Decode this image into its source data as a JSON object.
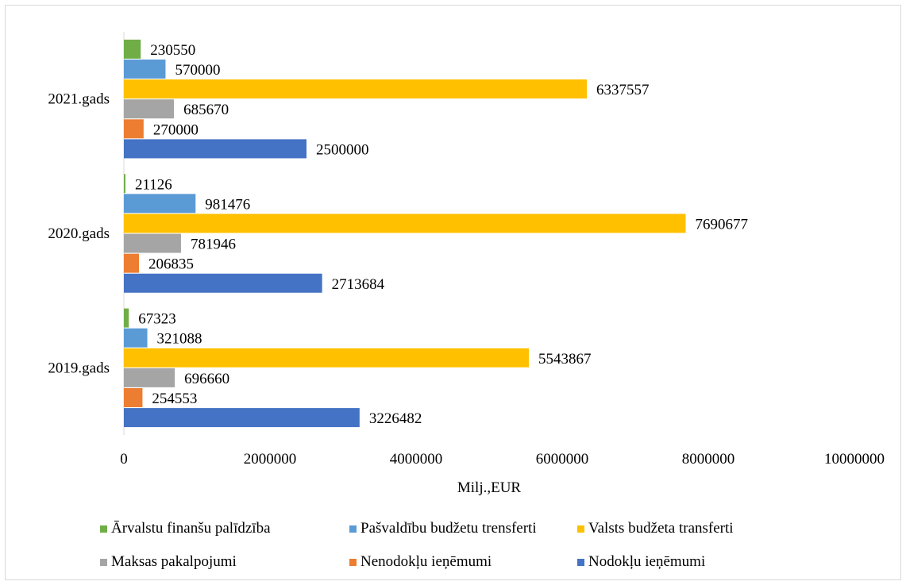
{
  "chart_data": {
    "type": "bar",
    "orientation": "horizontal",
    "categories": [
      "2019.gads",
      "2020.gads",
      "2021.gads"
    ],
    "series": [
      {
        "name": "Nodokļu ieņēmumi",
        "color": "#4472c4",
        "values": [
          3226482,
          2713684,
          2500000
        ]
      },
      {
        "name": "Nenodokļu ieņēmumi",
        "color": "#ed7d31",
        "values": [
          254553,
          206835,
          270000
        ]
      },
      {
        "name": "Maksas pakalpojumi",
        "color": "#a5a5a5",
        "values": [
          696660,
          781946,
          685670
        ]
      },
      {
        "name": "Valsts budžeta transferti",
        "color": "#ffc000",
        "values": [
          5543867,
          7690677,
          6337557
        ]
      },
      {
        "name": "Pašvaldību budžetu trensferti",
        "color": "#5b9bd5",
        "values": [
          321088,
          981476,
          570000
        ]
      },
      {
        "name": "Ārvalstu finanšu palīdzība",
        "color": "#70ad47",
        "values": [
          67323,
          21126,
          230550
        ]
      }
    ],
    "xlabel": "Milj.,EUR",
    "xlim": [
      0,
      10000000
    ],
    "xticks": [
      "0",
      "2000000",
      "4000000",
      "6000000",
      "8000000",
      "10000000"
    ],
    "grid": false,
    "legend_position": "bottom",
    "legend_order": [
      "Ārvalstu finanšu palīdzība",
      "Pašvaldību budžetu trensferti",
      "Valsts budžeta transferti",
      "Maksas pakalpojumi",
      "Nenodokļu ieņēmumi",
      "Nodokļu ieņēmumi"
    ]
  }
}
